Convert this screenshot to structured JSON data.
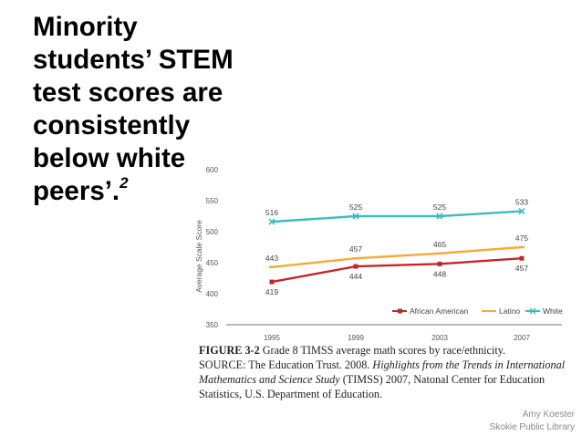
{
  "slide": {
    "title_lines": [
      "Minority",
      "students’ STEM",
      "test scores are",
      "consistently",
      "below white",
      "peers’."
    ],
    "footnote_marker": "2",
    "credit_name": "Amy Koester",
    "credit_org": "Skokie Public Library"
  },
  "caption": {
    "figure_label": "FIGURE 3-2",
    "figure_text": " Grade 8 TIMSS average math scores by race/ethnicity.",
    "source_prefix": "SOURCE: The Education Trust. 2008. ",
    "source_italic": "Highlights from the Trends in International Mathematics and Science Study",
    "source_suffix": " (TIMSS) 2007, Natonal Center for Education Statistics, U.S. Department of Education."
  },
  "chart_data": {
    "type": "line",
    "title": "",
    "xlabel": "",
    "ylabel": "Average Scale Score",
    "categories": [
      "1995",
      "1999",
      "2003",
      "2007"
    ],
    "ylim": [
      350,
      600
    ],
    "yticks": [
      350,
      400,
      450,
      500,
      550,
      600
    ],
    "series": [
      {
        "name": "African American",
        "color": "#c0282d",
        "marker": "square",
        "values": [
          419,
          444,
          448,
          457
        ],
        "label_pos": [
          "below",
          "below",
          "below",
          "below"
        ]
      },
      {
        "name": "Latino",
        "color": "#f5a93a",
        "marker": "dash",
        "values": [
          443,
          457,
          465,
          475
        ],
        "label_pos": [
          "above",
          "above",
          "above",
          "above"
        ]
      },
      {
        "name": "White",
        "color": "#3dbcbc",
        "marker": "x",
        "values": [
          516,
          525,
          525,
          533
        ],
        "label_pos": [
          "above",
          "above",
          "above",
          "above"
        ]
      }
    ],
    "legend": "bottom-right"
  }
}
